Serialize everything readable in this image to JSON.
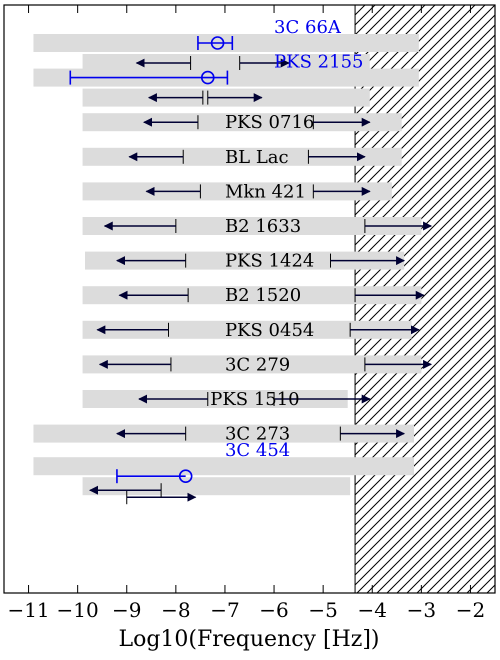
{
  "chart_data": {
    "type": "interval",
    "xlabel": "Log10(Frequency [Hz])",
    "xlim": [
      -11.5,
      -1.5
    ],
    "x_ticks": [
      -11,
      -10,
      -9,
      -8,
      -7,
      -6,
      -5,
      -4,
      -3,
      -2
    ],
    "x_tick_labels": [
      "−11",
      "−10",
      "−9",
      "−8",
      "−7",
      "−6",
      "−5",
      "−4",
      "−3",
      "−2"
    ],
    "excluded_region": {
      "from": -4.35,
      "to": -1.5,
      "style": "hatched"
    },
    "colors": {
      "limit_arrow": "#000033",
      "detection": "#0000ee",
      "bar": "#dcdcdc",
      "frame": "#000000",
      "highlight_label": "#0000ee"
    },
    "sources": [
      {
        "name": "3C 66A",
        "highlight": true,
        "bars": [
          [
            -10.9,
            -3.05
          ],
          [
            -9.9,
            -4.05
          ]
        ],
        "upper_limit": {
          "value": -6.7,
          "arrow_to": -5.7
        },
        "lower_limit": {
          "value": -7.7,
          "arrow_to": -8.8
        },
        "detection": {
          "value": -7.15,
          "err_low": -7.55,
          "err_high": -6.85
        }
      },
      {
        "name": "PKS 2155",
        "highlight": true,
        "bars": [
          [
            -10.9,
            -3.05
          ],
          [
            -9.9,
            -4.05
          ]
        ],
        "upper_limit": {
          "value": -7.35,
          "arrow_to": -6.25
        },
        "lower_limit": {
          "value": -7.45,
          "arrow_to": -8.55
        },
        "detection": {
          "value": -7.35,
          "err_low": -10.15,
          "err_high": -6.95
        }
      },
      {
        "name": "PKS 0716",
        "highlight": false,
        "bars": [
          [
            -9.9,
            -3.4
          ]
        ],
        "upper_limit": {
          "value": -5.2,
          "arrow_to": -4.05
        },
        "lower_limit": {
          "value": -7.55,
          "arrow_to": -8.65
        }
      },
      {
        "name": "BL Lac",
        "highlight": false,
        "bars": [
          [
            -9.9,
            -3.4
          ]
        ],
        "upper_limit": {
          "value": -5.3,
          "arrow_to": -4.15
        },
        "lower_limit": {
          "value": -7.85,
          "arrow_to": -8.95
        }
      },
      {
        "name": "Mkn 421",
        "highlight": false,
        "bars": [
          [
            -9.9,
            -3.6
          ]
        ],
        "upper_limit": {
          "value": -5.2,
          "arrow_to": -4.05
        },
        "lower_limit": {
          "value": -7.5,
          "arrow_to": -8.6
        }
      },
      {
        "name": "B2 1633",
        "highlight": false,
        "bars": [
          [
            -9.9,
            -3.0
          ]
        ],
        "upper_limit": {
          "value": -4.15,
          "arrow_to": -2.8
        },
        "lower_limit": {
          "value": -8.0,
          "arrow_to": -9.45
        }
      },
      {
        "name": "PKS 1424",
        "highlight": false,
        "bars": [
          [
            -9.85,
            -3.35
          ]
        ],
        "upper_limit": {
          "value": -4.85,
          "arrow_to": -3.35
        },
        "lower_limit": {
          "value": -7.8,
          "arrow_to": -9.2
        }
      },
      {
        "name": "B2 1520",
        "highlight": false,
        "bars": [
          [
            -9.9,
            -3.0
          ]
        ],
        "upper_limit": {
          "value": -4.35,
          "arrow_to": -2.95
        },
        "lower_limit": {
          "value": -7.75,
          "arrow_to": -9.15
        }
      },
      {
        "name": "PKS 0454",
        "highlight": false,
        "bars": [
          [
            -9.9,
            -3.2
          ]
        ],
        "upper_limit": {
          "value": -4.45,
          "arrow_to": -3.05
        },
        "lower_limit": {
          "value": -8.15,
          "arrow_to": -9.6
        }
      },
      {
        "name": "3C 279",
        "highlight": false,
        "bars": [
          [
            -9.9,
            -3.0
          ]
        ],
        "upper_limit": {
          "value": -4.15,
          "arrow_to": -2.8
        },
        "lower_limit": {
          "value": -8.1,
          "arrow_to": -9.55
        }
      },
      {
        "name": "PKS 1510",
        "highlight": false,
        "bars": [
          [
            -9.9,
            -4.5
          ]
        ],
        "upper_limit": {
          "value": -6.0,
          "arrow_to": -4.05
        },
        "lower_limit": {
          "value": -7.35,
          "arrow_to": -8.75
        }
      },
      {
        "name": "3C 273",
        "highlight": false,
        "bars": [
          [
            -10.9,
            -3.15
          ]
        ],
        "upper_limit": {
          "value": -4.65,
          "arrow_to": -3.35
        },
        "lower_limit": {
          "value": -7.8,
          "arrow_to": -9.2
        }
      },
      {
        "name": "3C 454",
        "highlight": true,
        "bars": [
          [
            -10.9,
            -3.15
          ],
          [
            -9.9,
            -4.45
          ]
        ],
        "upper_limit": {
          "value": -9.0,
          "arrow_to": -7.6
        },
        "lower_limit": {
          "value": -8.3,
          "arrow_to": -9.75
        },
        "detection": {
          "value": -7.8,
          "err_low": -9.2,
          "err_high": -7.8
        }
      }
    ]
  }
}
